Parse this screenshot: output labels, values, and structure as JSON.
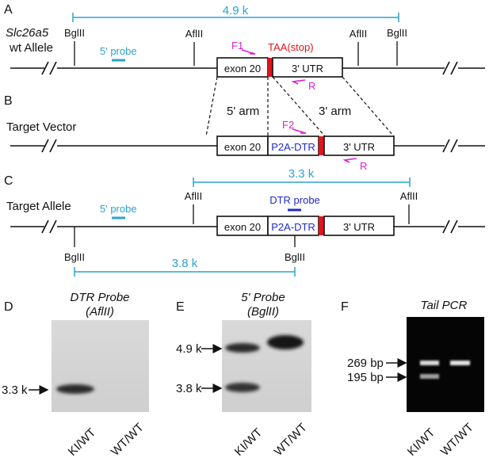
{
  "colors": {
    "cyan": "#2ba3cf",
    "magenta": "#d81fd2",
    "red": "#e0141c",
    "blue": "#1f2bd0"
  },
  "panels": {
    "a": {
      "letter": "A",
      "gene": "Slc26a5",
      "allele": "wt Allele",
      "size": "4.9 k",
      "sites": [
        "BglII",
        "AflII",
        "AflII",
        "BglII"
      ],
      "probe": "5' probe",
      "primer_f": "F1",
      "primer_r": "R",
      "stop": "TAA(stop)",
      "exon": "exon 20",
      "utr": "3' UTR"
    },
    "b": {
      "letter": "B",
      "title": "Target Vector",
      "arm5": "5' arm",
      "arm3": "3' arm",
      "primer_f": "F2",
      "primer_r": "R",
      "exon": "exon 20",
      "insert": "P2A-DTR",
      "utr": "3' UTR"
    },
    "c": {
      "letter": "C",
      "title": "Target Allele",
      "size_top": "3.3 k",
      "size_bottom": "3.8 k",
      "afl_sites": [
        "AflII",
        "AflII"
      ],
      "bgl_sites": [
        "BglII",
        "BglII"
      ],
      "probe": "5' probe",
      "dtr_probe": "DTR probe",
      "exon": "exon 20",
      "insert": "P2A-DTR",
      "utr": "3' UTR"
    },
    "d": {
      "letter": "D",
      "title1": "DTR Probe",
      "title2": "(AflII)",
      "marker": "3.3 k",
      "lanes": [
        "KI/WT",
        "WT/WT"
      ]
    },
    "e": {
      "letter": "E",
      "title1": "5' Probe",
      "title2": "(BglII)",
      "markers": [
        "4.9 k",
        "3.8 k"
      ],
      "lanes": [
        "KI/WT",
        "WT/WT"
      ]
    },
    "f": {
      "letter": "F",
      "title": "Tail PCR",
      "markers": [
        "269 bp",
        "195 bp"
      ],
      "lanes": [
        "KI/WT",
        "WT/WT"
      ]
    }
  }
}
